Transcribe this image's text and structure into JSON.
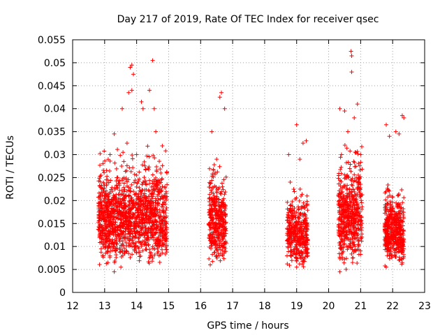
{
  "chart_data": {
    "type": "scatter",
    "title": "Day 217 of 2019, Rate Of TEC Index for receiver qsec",
    "xlabel": "GPS time / hours",
    "ylabel": "ROTI / TECUs",
    "xlim": [
      12,
      23
    ],
    "ylim": [
      0,
      0.055
    ],
    "x_ticks": [
      12,
      13,
      14,
      15,
      16,
      17,
      18,
      19,
      20,
      21,
      22,
      23
    ],
    "x_tick_labels": [
      "12",
      "13",
      "14",
      "15",
      "16",
      "17",
      "18",
      "19",
      "20",
      "21",
      "22",
      "23"
    ],
    "y_ticks": [
      0,
      0.005,
      0.01,
      0.015,
      0.02,
      0.025,
      0.03,
      0.035,
      0.04,
      0.045,
      0.05,
      0.055
    ],
    "y_tick_labels": [
      "0",
      "0.005",
      "0.01",
      "0.015",
      "0.02",
      "0.025",
      "0.03",
      "0.035",
      "0.04",
      "0.045",
      "0.05",
      "0.055"
    ],
    "grid": true,
    "marker": "+",
    "marker_color": "#ff0000",
    "series": [
      {
        "name": "ROTI",
        "clusters": [
          {
            "x_range": [
              12.8,
              14.95
            ],
            "y_range": [
              0.005,
              0.0505
            ],
            "count": 1400
          },
          {
            "x_range": [
              16.25,
              16.8
            ],
            "y_range": [
              0.0055,
              0.044
            ],
            "count": 380
          },
          {
            "x_range": [
              18.7,
              19.35
            ],
            "y_range": [
              0.005,
              0.037
            ],
            "count": 380
          },
          {
            "x_range": [
              20.3,
              21.05
            ],
            "y_range": [
              0.0045,
              0.0525
            ],
            "count": 520
          },
          {
            "x_range": [
              21.75,
              22.35
            ],
            "y_range": [
              0.005,
              0.0385
            ],
            "count": 460
          }
        ],
        "points": [
          [
            13.1,
            0.0065
          ],
          [
            13.3,
            0.0045
          ],
          [
            13.6,
            0.0285
          ],
          [
            13.7,
            0.0325
          ],
          [
            13.8,
            0.049
          ],
          [
            13.85,
            0.0495
          ],
          [
            13.9,
            0.0475
          ],
          [
            13.85,
            0.044
          ],
          [
            13.75,
            0.0435
          ],
          [
            14.15,
            0.0415
          ],
          [
            14.2,
            0.04
          ],
          [
            14.4,
            0.044
          ],
          [
            14.5,
            0.0505
          ],
          [
            14.55,
            0.04
          ],
          [
            14.6,
            0.035
          ],
          [
            14.0,
            0.03
          ],
          [
            13.55,
            0.04
          ],
          [
            13.3,
            0.0345
          ],
          [
            14.95,
            0.0235
          ],
          [
            16.35,
            0.035
          ],
          [
            16.5,
            0.029
          ],
          [
            16.6,
            0.0425
          ],
          [
            16.65,
            0.0435
          ],
          [
            16.75,
            0.04
          ],
          [
            16.3,
            0.006
          ],
          [
            16.45,
            0.026
          ],
          [
            18.75,
            0.03
          ],
          [
            19.0,
            0.0365
          ],
          [
            19.1,
            0.029
          ],
          [
            19.2,
            0.0325
          ],
          [
            19.3,
            0.033
          ],
          [
            19.0,
            0.0055
          ],
          [
            18.8,
            0.024
          ],
          [
            20.35,
            0.04
          ],
          [
            20.4,
            0.03
          ],
          [
            20.6,
            0.035
          ],
          [
            20.7,
            0.0525
          ],
          [
            20.72,
            0.0515
          ],
          [
            20.72,
            0.048
          ],
          [
            20.8,
            0.038
          ],
          [
            20.9,
            0.041
          ],
          [
            21.0,
            0.03
          ],
          [
            20.35,
            0.0045
          ],
          [
            20.5,
            0.0395
          ],
          [
            21.8,
            0.0365
          ],
          [
            21.9,
            0.034
          ],
          [
            22.1,
            0.035
          ],
          [
            22.2,
            0.0345
          ],
          [
            22.3,
            0.0385
          ],
          [
            22.35,
            0.038
          ],
          [
            22.3,
            0.0065
          ],
          [
            21.8,
            0.0055
          ]
        ]
      }
    ]
  }
}
